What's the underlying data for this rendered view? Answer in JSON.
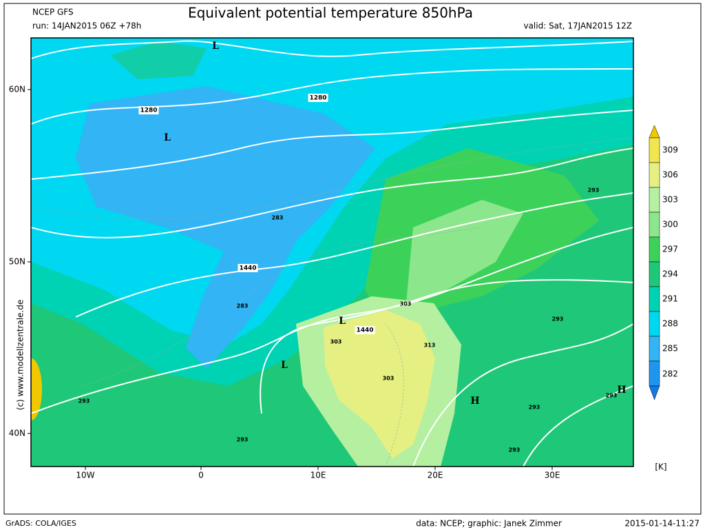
{
  "header": {
    "model": "NCEP GFS",
    "run": "run: 14JAN2015 06Z +78h",
    "title": "Equivalent potential temperature 850hPa",
    "valid": "valid: Sat, 17JAN2015 12Z"
  },
  "axes": {
    "lat_labels": [
      "60N",
      "50N",
      "40N"
    ],
    "lon_labels": [
      "10W",
      "0",
      "10E",
      "20E",
      "30E"
    ]
  },
  "colorbar": {
    "labels": [
      "309",
      "306",
      "303",
      "300",
      "297",
      "294",
      "291",
      "288",
      "285",
      "282"
    ],
    "unit": "[K]"
  },
  "map": {
    "isobar_labels": [
      "1280",
      "1280",
      "1440",
      "1440"
    ],
    "theta_labels": [
      "283",
      "283",
      "293",
      "293",
      "293",
      "293",
      "293",
      "293",
      "293",
      "303",
      "303",
      "303",
      "313"
    ],
    "pressure_centers": [
      "L",
      "L",
      "L",
      "L",
      "H",
      "H"
    ]
  },
  "credit": "(c) www.modellzentrale.de",
  "footer": {
    "software": "GrADS: COLA/IGES",
    "source": "data: NCEP; graphic: Janek Zimmer",
    "timestamp": "2015-01-14-11:27"
  }
}
